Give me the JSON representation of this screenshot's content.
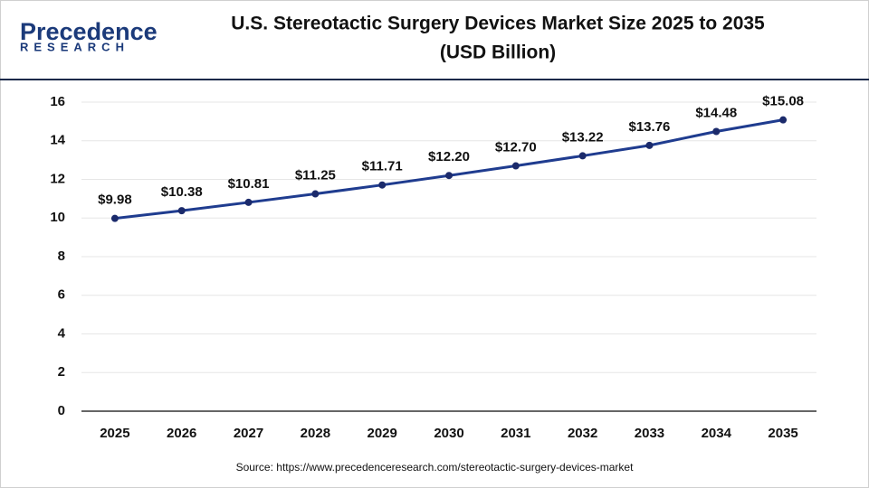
{
  "logo": {
    "name": "Precedence",
    "tagline": "RESEARCH"
  },
  "chart_data": {
    "type": "line",
    "title": [
      "U.S. Stereotactic Surgery Devices Market Size 2025 to 2035",
      "(USD Billion)"
    ],
    "source": "Source: https://www.precedenceresearch.com/stereotactic-surgery-devices-market",
    "categories": [
      "2025",
      "2026",
      "2027",
      "2028",
      "2029",
      "2030",
      "2031",
      "2032",
      "2033",
      "2034",
      "2035"
    ],
    "values": [
      9.98,
      10.38,
      10.81,
      11.25,
      11.71,
      12.2,
      12.7,
      13.22,
      13.76,
      14.48,
      15.08
    ],
    "value_labels": [
      "$9.98",
      "$10.38",
      "$10.81",
      "$11.25",
      "$11.71",
      "$12.20",
      "$12.70",
      "$13.22",
      "$13.76",
      "$14.48",
      "$15.08"
    ],
    "color": "#1f3c8f",
    "ylim": [
      0,
      16
    ],
    "yticks": [
      0,
      2,
      4,
      6,
      8,
      10,
      12,
      14,
      16
    ],
    "grid": true
  }
}
